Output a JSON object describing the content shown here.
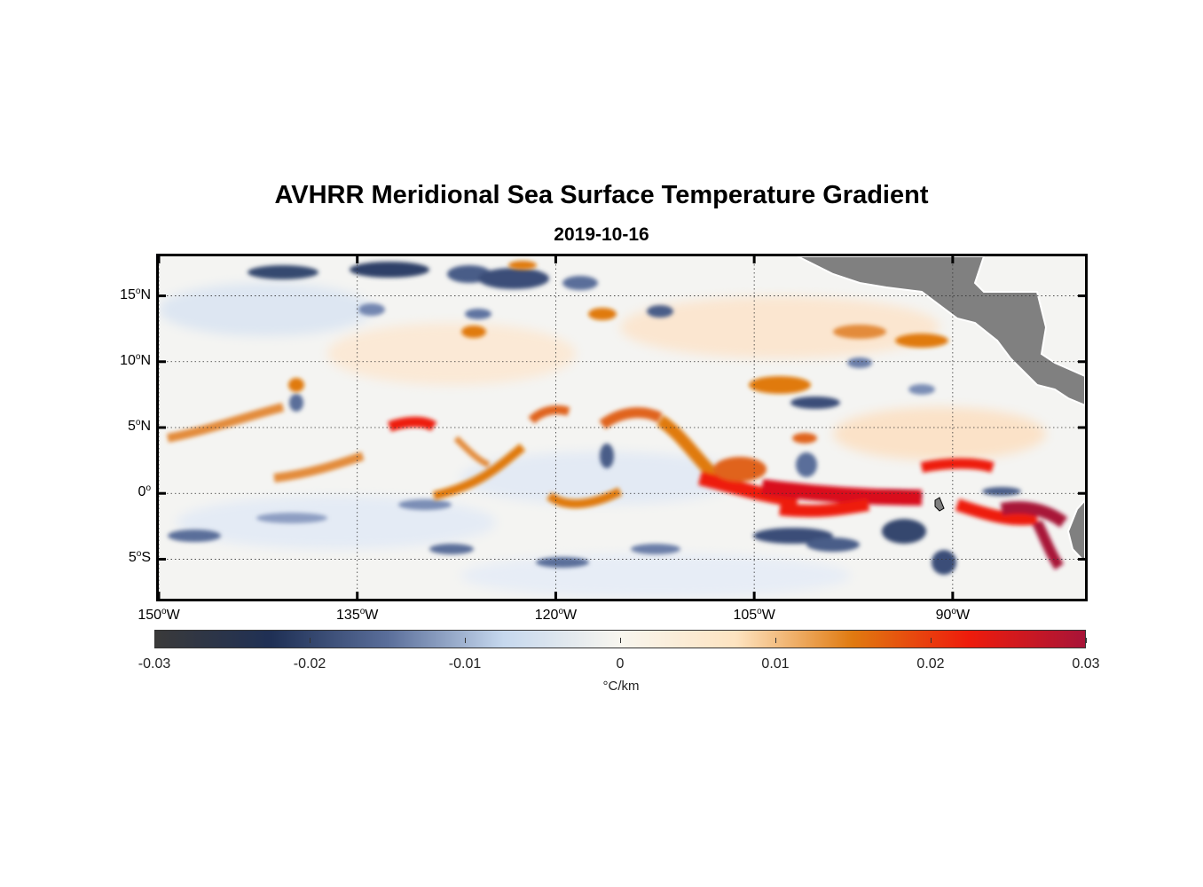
{
  "title": "AVHRR Meridional Sea Surface Temperature Gradient",
  "subtitle": "2019-10-16",
  "map": {
    "lon_range": [
      -150,
      -80
    ],
    "lat_range": [
      -8,
      18
    ],
    "lat_ticks": [
      {
        "value": 15,
        "num": "15",
        "hemi": "N"
      },
      {
        "value": 10,
        "num": "10",
        "hemi": "N"
      },
      {
        "value": 5,
        "num": "5",
        "hemi": "N"
      },
      {
        "value": 0,
        "num": "0",
        "hemi": ""
      },
      {
        "value": -5,
        "num": "5",
        "hemi": "S"
      }
    ],
    "lon_ticks": [
      {
        "value": -150,
        "num": "150",
        "hemi": "W"
      },
      {
        "value": -135,
        "num": "135",
        "hemi": "W"
      },
      {
        "value": -120,
        "num": "120",
        "hemi": "W"
      },
      {
        "value": -105,
        "num": "105",
        "hemi": "W"
      },
      {
        "value": -90,
        "num": "90",
        "hemi": "W"
      }
    ],
    "degree_symbol": "o",
    "grid": "dotted",
    "land_color": "#808080"
  },
  "colorbar": {
    "min": -0.03,
    "max": 0.03,
    "tick_labels": [
      "-0.03",
      "-0.02",
      "-0.01",
      "0",
      "0.01",
      "0.02",
      "0.03"
    ],
    "units": "°C/km",
    "colors": [
      "#3a3a3a",
      "#1f3055",
      "#5a6e9a",
      "#c6d8ee",
      "#f8f6ef",
      "#fde3c0",
      "#e07a10",
      "#ee1c0c",
      "#a81438"
    ]
  }
}
